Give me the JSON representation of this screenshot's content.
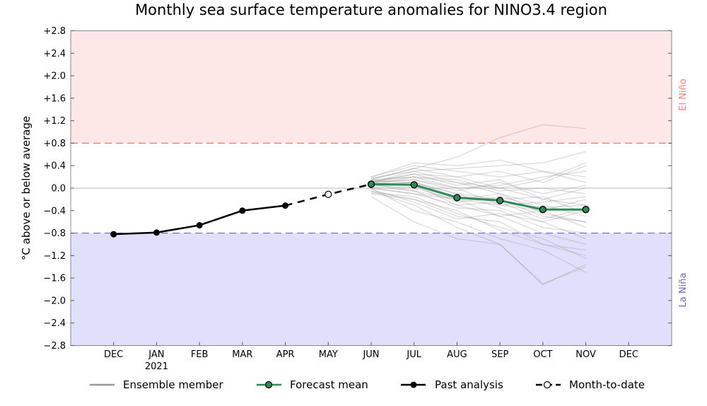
{
  "chart_data": {
    "type": "line",
    "title": "Monthly sea surface temperature anomalies for NINO3.4 region",
    "ylabel": "°C above or below average",
    "xlabel": "",
    "ylim": [
      -2.8,
      2.8
    ],
    "yticks": [
      2.8,
      2.4,
      2.0,
      1.6,
      1.2,
      0.8,
      0.4,
      0.0,
      -0.4,
      -0.8,
      -1.2,
      -1.6,
      -2.0,
      -2.4,
      -2.8
    ],
    "ytick_labels": [
      "+2.8",
      "+2.4",
      "+2.0",
      "+1.6",
      "+1.2",
      "+0.8",
      "+0.4",
      "0.0",
      "−0.4",
      "−0.8",
      "−1.2",
      "−1.6",
      "−2.0",
      "−2.4",
      "−2.8"
    ],
    "categories": [
      "DEC",
      "JAN",
      "FEB",
      "MAR",
      "APR",
      "MAY",
      "JUN",
      "JUL",
      "AUG",
      "SEP",
      "OCT",
      "NOV",
      "DEC"
    ],
    "year_label": "2021",
    "year_label_index": 1,
    "thresholds": {
      "el_nino": 0.8,
      "la_nina": -0.8
    },
    "regions": {
      "el_nino_label": "El Niño",
      "la_nina_label": "La Niña"
    },
    "colors": {
      "el_nino_fill": "#fde7e7",
      "la_nina_fill": "#e0e0fc",
      "el_nino_line": "#e8706a",
      "la_nina_line": "#6a6ab8",
      "el_nino_text": "#f08080",
      "la_nina_text": "#6b6bb5",
      "forecast": "#2e8b57",
      "ensemble": "#999999",
      "past": "#000000"
    },
    "legend_position": "bottom",
    "legend": [
      "Ensemble member",
      "Forecast mean",
      "Past analysis",
      "Month-to-date"
    ],
    "past_analysis": {
      "indices": [
        0,
        1,
        2,
        3,
        4
      ],
      "values": [
        -0.82,
        -0.79,
        -0.66,
        -0.4,
        -0.31
      ]
    },
    "month_to_date": {
      "index": 5,
      "value": -0.11
    },
    "forecast_mean": {
      "indices": [
        6,
        7,
        8,
        9,
        10,
        11
      ],
      "values": [
        0.07,
        0.06,
        -0.17,
        -0.22,
        -0.38,
        -0.38
      ]
    },
    "ensemble": {
      "indices": [
        6,
        7,
        8,
        9,
        10,
        11
      ],
      "members": [
        [
          0.15,
          0.35,
          0.55,
          0.9,
          1.13,
          1.06
        ],
        [
          0.1,
          0.3,
          0.35,
          0.4,
          0.45,
          0.65
        ],
        [
          0.05,
          0.2,
          0.1,
          0.0,
          -0.2,
          -0.3
        ],
        [
          0.0,
          -0.1,
          -0.3,
          -0.5,
          -0.8,
          -1.0
        ],
        [
          0.12,
          0.25,
          0.2,
          0.3,
          0.1,
          0.4
        ],
        [
          -0.05,
          -0.3,
          -0.7,
          -1.0,
          -1.7,
          -1.4
        ],
        [
          0.08,
          0.1,
          -0.1,
          -0.2,
          -0.5,
          -0.6
        ],
        [
          0.2,
          0.4,
          0.3,
          0.2,
          0.3,
          0.2
        ],
        [
          -0.1,
          -0.2,
          -0.5,
          -0.6,
          -1.0,
          -1.2
        ],
        [
          0.05,
          0.0,
          -0.2,
          -0.3,
          -0.4,
          -0.2
        ],
        [
          0.1,
          0.15,
          -0.05,
          0.1,
          -0.1,
          0.05
        ],
        [
          0.0,
          -0.4,
          -0.6,
          -0.9,
          -1.1,
          -1.5
        ],
        [
          0.18,
          0.3,
          0.1,
          -0.1,
          -0.3,
          -0.5
        ],
        [
          0.03,
          -0.05,
          -0.35,
          -0.4,
          -0.7,
          -0.8
        ],
        [
          0.15,
          0.2,
          0.0,
          0.05,
          0.2,
          0.3
        ],
        [
          -0.08,
          -0.15,
          -0.45,
          -0.7,
          -0.9,
          -1.25
        ],
        [
          0.1,
          0.05,
          -0.25,
          -0.15,
          -0.35,
          -0.3
        ],
        [
          0.06,
          0.1,
          -0.1,
          -0.35,
          -0.6,
          -0.4
        ],
        [
          0.2,
          0.45,
          0.4,
          0.5,
          0.3,
          0.1
        ],
        [
          -0.15,
          -0.6,
          -0.9,
          -1.0,
          -1.72,
          -1.36
        ],
        [
          0.12,
          0.2,
          0.15,
          -0.05,
          0.0,
          -0.1
        ],
        [
          0.0,
          -0.1,
          -0.2,
          -0.5,
          -0.4,
          -0.7
        ],
        [
          0.09,
          0.25,
          0.05,
          0.15,
          -0.2,
          0.0
        ],
        [
          -0.02,
          -0.25,
          -0.55,
          -0.45,
          -0.6,
          -0.9
        ],
        [
          0.14,
          0.1,
          -0.15,
          -0.2,
          -0.15,
          -0.45
        ],
        [
          0.05,
          0.05,
          -0.3,
          -0.25,
          -0.55,
          -0.35
        ],
        [
          0.16,
          0.35,
          0.2,
          0.0,
          0.15,
          0.45
        ],
        [
          -0.05,
          -0.2,
          -0.4,
          -0.75,
          -1.0,
          -1.1
        ],
        [
          0.11,
          0.15,
          0.0,
          -0.3,
          -0.25,
          -0.15
        ],
        [
          0.07,
          -0.05,
          -0.2,
          -0.1,
          -0.45,
          -0.6
        ]
      ]
    }
  }
}
